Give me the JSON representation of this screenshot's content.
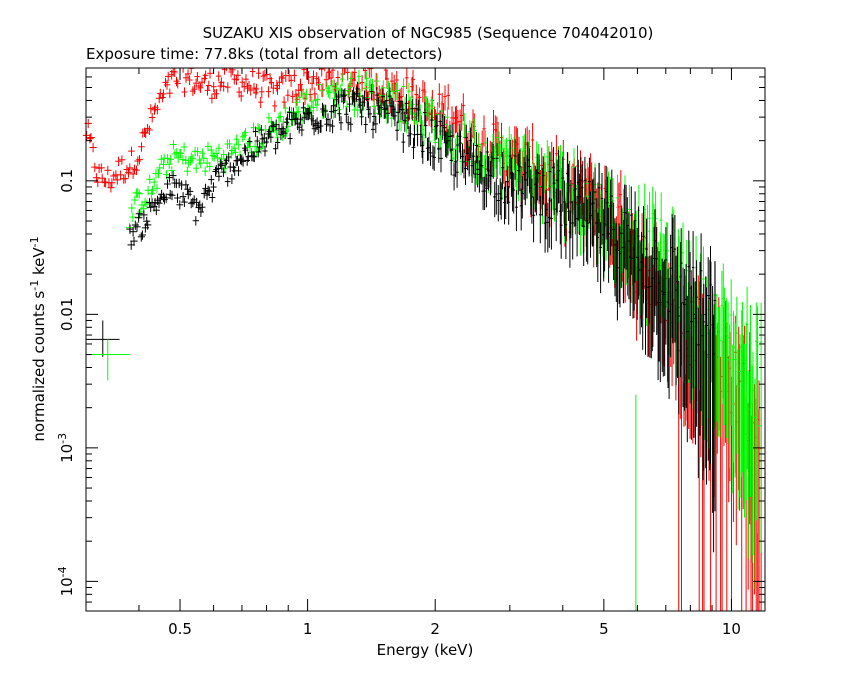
{
  "chart_data": {
    "type": "scatter",
    "title": "SUZAKU XIS observation of NGC985 (Sequence 704042010)",
    "subtitle": "Exposure time: 77.8ks (total from all detectors)",
    "xlabel": "Energy (keV)",
    "ylabel_base": "normalized counts s",
    "ylabel_unit": "keV",
    "ylabel_exp": "-1",
    "x_scale": "log",
    "y_scale": "log",
    "xlim": [
      0.3,
      12
    ],
    "ylim": [
      6e-05,
      0.7
    ],
    "x_ticks": [
      {
        "value": 0.5,
        "label": "0.5"
      },
      {
        "value": 1,
        "label": "1"
      },
      {
        "value": 2,
        "label": "2"
      },
      {
        "value": 5,
        "label": "5"
      },
      {
        "value": 10,
        "label": "10"
      }
    ],
    "y_ticks": [
      {
        "value": 0.1,
        "label": "0.1"
      },
      {
        "value": 0.01,
        "label": "0.01"
      },
      {
        "value": 0.001,
        "base": "10",
        "exp": "-3"
      },
      {
        "value": 0.0001,
        "base": "10",
        "exp": "-4"
      }
    ],
    "grid": false,
    "series": [
      {
        "color": "#ff0000",
        "points": [
          [
            0.3,
            0.25
          ],
          [
            0.32,
            0.11
          ],
          [
            0.34,
            0.1
          ],
          [
            0.36,
            0.12
          ],
          [
            0.38,
            0.13
          ],
          [
            0.4,
            0.16
          ],
          [
            0.42,
            0.25
          ],
          [
            0.44,
            0.35
          ],
          [
            0.46,
            0.45
          ],
          [
            0.48,
            0.55
          ],
          [
            0.5,
            0.6
          ],
          [
            0.52,
            0.58
          ],
          [
            0.55,
            0.55
          ],
          [
            0.58,
            0.52
          ],
          [
            0.62,
            0.55
          ],
          [
            0.66,
            0.58
          ],
          [
            0.7,
            0.55
          ],
          [
            0.75,
            0.52
          ],
          [
            0.8,
            0.48
          ],
          [
            0.85,
            0.45
          ],
          [
            0.9,
            0.5
          ],
          [
            0.95,
            0.52
          ],
          [
            1.0,
            0.55
          ],
          [
            1.1,
            0.58
          ],
          [
            1.2,
            0.6
          ],
          [
            1.3,
            0.58
          ],
          [
            1.4,
            0.55
          ],
          [
            1.5,
            0.52
          ],
          [
            1.6,
            0.48
          ],
          [
            1.8,
            0.4
          ],
          [
            2.0,
            0.3
          ],
          [
            2.2,
            0.35
          ],
          [
            2.4,
            0.22
          ],
          [
            2.7,
            0.18
          ],
          [
            3.0,
            0.15
          ],
          [
            3.5,
            0.12
          ],
          [
            4.0,
            0.09
          ],
          [
            4.5,
            0.075
          ],
          [
            5.0,
            0.06
          ],
          [
            5.5,
            0.045
          ],
          [
            5.8,
            0.035
          ],
          [
            6.0,
            0.025
          ],
          [
            6.4,
            0.022
          ],
          [
            6.8,
            0.018
          ],
          [
            7.2,
            0.012
          ],
          [
            7.8,
            0.009
          ],
          [
            8.5,
            0.006
          ],
          [
            9.2,
            0.004
          ],
          [
            10.0,
            0.003
          ],
          [
            11.0,
            0.002
          ],
          [
            11.8,
            0.0015
          ]
        ]
      },
      {
        "color": "#00ff00",
        "points": [
          [
            0.38,
            0.055
          ],
          [
            0.4,
            0.07
          ],
          [
            0.42,
            0.08
          ],
          [
            0.44,
            0.1
          ],
          [
            0.46,
            0.13
          ],
          [
            0.48,
            0.15
          ],
          [
            0.5,
            0.15
          ],
          [
            0.55,
            0.14
          ],
          [
            0.6,
            0.15
          ],
          [
            0.65,
            0.16
          ],
          [
            0.7,
            0.18
          ],
          [
            0.75,
            0.2
          ],
          [
            0.8,
            0.23
          ],
          [
            0.85,
            0.26
          ],
          [
            0.9,
            0.3
          ],
          [
            0.95,
            0.34
          ],
          [
            1.0,
            0.38
          ],
          [
            1.1,
            0.42
          ],
          [
            1.2,
            0.45
          ],
          [
            1.3,
            0.46
          ],
          [
            1.4,
            0.44
          ],
          [
            1.5,
            0.42
          ],
          [
            1.6,
            0.4
          ],
          [
            1.8,
            0.35
          ],
          [
            2.0,
            0.25
          ],
          [
            2.2,
            0.2
          ],
          [
            2.4,
            0.18
          ],
          [
            2.7,
            0.16
          ],
          [
            3.0,
            0.14
          ],
          [
            3.5,
            0.11
          ],
          [
            4.0,
            0.09
          ],
          [
            4.5,
            0.075
          ],
          [
            5.0,
            0.06
          ],
          [
            5.5,
            0.048
          ],
          [
            5.8,
            0.045
          ],
          [
            6.2,
            0.035
          ],
          [
            6.6,
            0.03
          ],
          [
            7.0,
            0.025
          ],
          [
            7.5,
            0.018
          ],
          [
            8.0,
            0.014
          ],
          [
            8.5,
            0.01
          ],
          [
            9.2,
            0.008
          ],
          [
            10.0,
            0.006
          ],
          [
            11.0,
            0.004
          ],
          [
            11.8,
            0.003
          ]
        ]
      },
      {
        "color": "#000000",
        "points": [
          [
            0.38,
            0.04
          ],
          [
            0.4,
            0.045
          ],
          [
            0.42,
            0.055
          ],
          [
            0.44,
            0.07
          ],
          [
            0.46,
            0.08
          ],
          [
            0.48,
            0.09
          ],
          [
            0.5,
            0.08
          ],
          [
            0.52,
            0.075
          ],
          [
            0.55,
            0.06
          ],
          [
            0.58,
            0.08
          ],
          [
            0.62,
            0.11
          ],
          [
            0.66,
            0.13
          ],
          [
            0.7,
            0.15
          ],
          [
            0.75,
            0.18
          ],
          [
            0.8,
            0.2
          ],
          [
            0.85,
            0.22
          ],
          [
            0.9,
            0.25
          ],
          [
            0.95,
            0.27
          ],
          [
            1.0,
            0.3
          ],
          [
            1.1,
            0.33
          ],
          [
            1.2,
            0.35
          ],
          [
            1.3,
            0.36
          ],
          [
            1.4,
            0.34
          ],
          [
            1.5,
            0.32
          ],
          [
            1.6,
            0.3
          ],
          [
            1.8,
            0.25
          ],
          [
            2.0,
            0.2
          ],
          [
            2.2,
            0.16
          ],
          [
            2.4,
            0.14
          ],
          [
            2.7,
            0.12
          ],
          [
            3.0,
            0.1
          ],
          [
            3.5,
            0.085
          ],
          [
            4.0,
            0.07
          ],
          [
            4.5,
            0.058
          ],
          [
            5.0,
            0.048
          ],
          [
            5.5,
            0.04
          ],
          [
            6.0,
            0.03
          ],
          [
            6.5,
            0.025
          ],
          [
            7.0,
            0.02
          ],
          [
            7.5,
            0.016
          ],
          [
            8.0,
            0.013
          ],
          [
            8.5,
            0.01
          ],
          [
            9.2,
            0.008
          ]
        ]
      }
    ],
    "legend_markers": [
      {
        "color": "#000000",
        "x_range": [
          0.3,
          0.36
        ],
        "y": 0.0065,
        "y_range": [
          0.0048,
          0.009
        ]
      },
      {
        "color": "#00ff00",
        "x_range": [
          0.3,
          0.38
        ],
        "y": 0.005,
        "y_range": [
          0.0032,
          0.0065
        ]
      }
    ],
    "deep_dip": {
      "color": "#00ff00",
      "x": 5.95,
      "y_top": 0.0025
    }
  }
}
